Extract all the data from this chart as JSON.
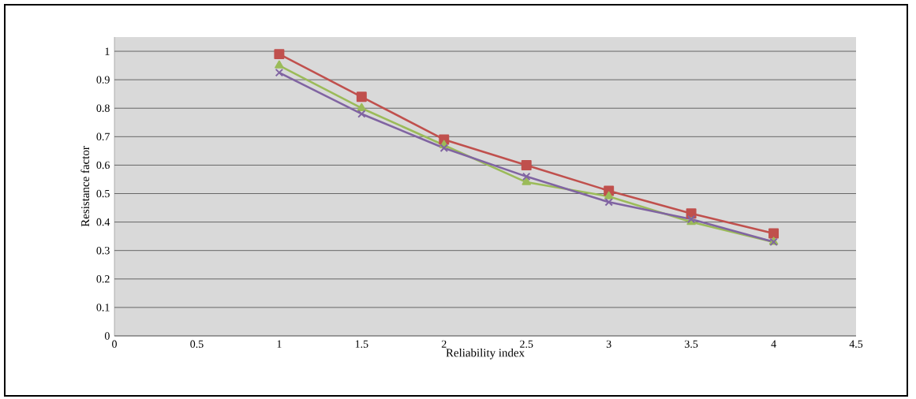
{
  "chart_data": {
    "type": "line",
    "xlabel": "Reliability index",
    "ylabel": "Resistance factor",
    "x": [
      1,
      1.5,
      2,
      2.5,
      3,
      3.5,
      4
    ],
    "series": [
      {
        "color": "#c0504d",
        "marker": "square",
        "values": [
          0.99,
          0.84,
          0.69,
          0.6,
          0.51,
          0.43,
          0.36
        ]
      },
      {
        "color": "#9bbb59",
        "marker": "triangle",
        "values": [
          0.95,
          0.8,
          0.67,
          0.54,
          0.49,
          0.4,
          0.33
        ]
      },
      {
        "color": "#8064a2",
        "marker": "cross",
        "values": [
          0.925,
          0.78,
          0.66,
          0.56,
          0.47,
          0.41,
          0.33
        ]
      }
    ],
    "xlim": [
      0,
      4.5
    ],
    "ylim": [
      0,
      1.05
    ],
    "xticks": [
      0,
      0.5,
      1,
      1.5,
      2,
      2.5,
      3,
      3.5,
      4,
      4.5
    ],
    "yticks": [
      0,
      0.1,
      0.2,
      0.3,
      0.4,
      0.5,
      0.6,
      0.7,
      0.8,
      0.9,
      1
    ],
    "grid": "y"
  }
}
